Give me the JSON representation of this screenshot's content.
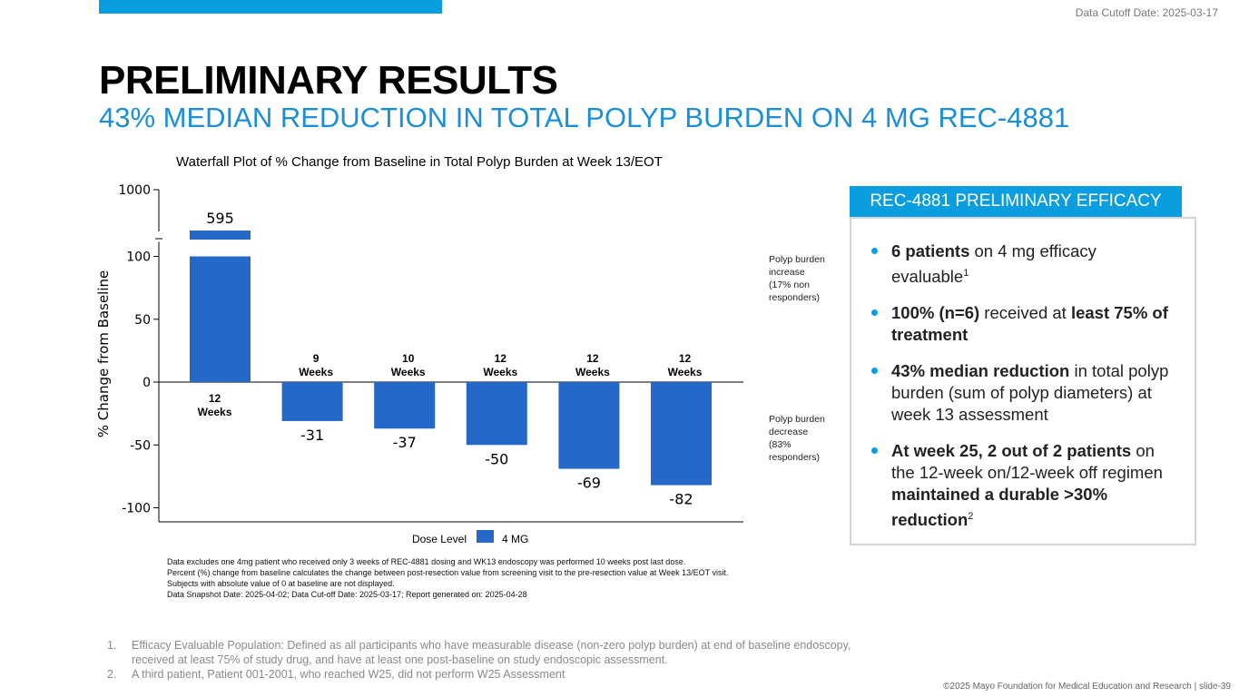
{
  "header": {
    "cutoff_label": "Data Cutoff Date: 2025-03-17",
    "title": "PRELIMINARY RESULTS",
    "subtitle": "43% MEDIAN REDUCTION IN TOTAL POLYP BURDEN ON 4 MG REC-4881"
  },
  "colors": {
    "accent": "#0a9ee0",
    "bar": "#2468c8",
    "subtitle": "#1a8fd8"
  },
  "chart_data": {
    "type": "bar",
    "title": "Waterfall Plot of % Change from Baseline in Total Polyp Burden at Week 13/EOT",
    "ylabel": "% Change from Baseline",
    "yticks": [
      "1000",
      "100",
      "50",
      "0",
      "-50",
      "-100"
    ],
    "ylim": [
      -100,
      1000
    ],
    "axis_break": [
      100,
      1000
    ],
    "values": [
      595,
      -31,
      -37,
      -50,
      -69,
      -82
    ],
    "value_labels": [
      "595",
      "-31",
      "-37",
      "-50",
      "-69",
      "-82"
    ],
    "duration_labels": [
      [
        "12",
        "Weeks"
      ],
      [
        "9",
        "Weeks"
      ],
      [
        "10",
        "Weeks"
      ],
      [
        "12",
        "Weeks"
      ],
      [
        "12",
        "Weeks"
      ],
      [
        "12",
        "Weeks"
      ]
    ],
    "legend_title": "Dose Level",
    "legend_series": "4 MG",
    "increase_note": [
      "Polyp burden",
      "increase",
      "(17% non",
      "responders)"
    ],
    "decrease_note": [
      "Polyp burden",
      "decrease",
      "(83%",
      "responders)"
    ]
  },
  "chart_notes": [
    "Data excludes one 4mg patient who received only 3 weeks of REC-4881 dosing and WK13 endoscopy was performed 10 weeks post last dose.",
    "Percent (%) change from baseline calculates the change between post-resection value from screening visit to the pre-resection value at Week 13/EOT visit. Subjects with absolute value of 0 at baseline are not displayed.",
    "Data Snapshot Date: 2025-04-02; Data Cut-off Date: 2025-03-17; Report generated on: 2025-04-28"
  ],
  "panel": {
    "title": "REC-4881 PRELIMINARY EFFICACY",
    "b1_bold": "6 patients",
    "b1_text": " on 4 mg efficacy evaluable",
    "b1_sup": "1",
    "b2_bold1": "100% (n=6)",
    "b2_text": " received at ",
    "b2_bold2": "least 75% of treatment",
    "b3_bold": "43% median reduction",
    "b3_text": " in total polyp burden (sum of polyp diameters) at week 13 assessment",
    "b4_bold1": "At week 25, 2 out of 2 patients",
    "b4_text": " on the 12-week on/12-week off regimen ",
    "b4_bold2": "maintained a durable >30% reduction",
    "b4_sup": "2"
  },
  "footnotes": [
    {
      "num": "1.",
      "text": "Efficacy Evaluable Population: Defined as all participants who have measurable disease (non-zero polyp burden) at end of baseline endoscopy, received at least 75% of study drug, and have at least one post-baseline on study endoscopic assessment."
    },
    {
      "num": "2.",
      "text": "A third patient, Patient 001-2001, who reached W25, did not perform W25 Assessment"
    }
  ],
  "copyright": "©2025 Mayo Foundation for Medical Education and Research  |  slide-39"
}
